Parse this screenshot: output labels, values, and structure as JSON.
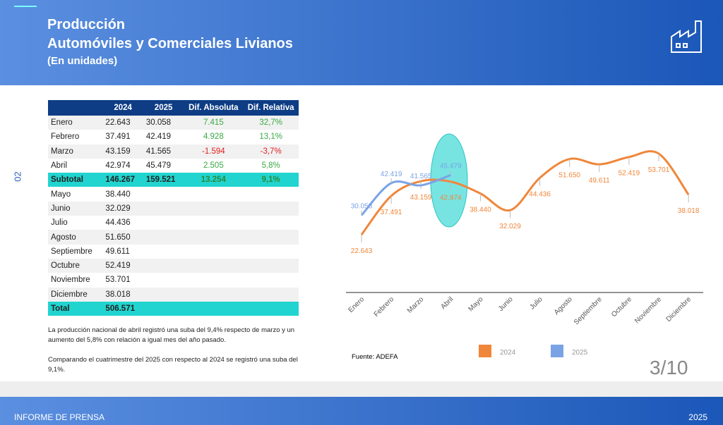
{
  "header": {
    "title": "Producción",
    "subtitle": "Automóviles y Comerciales Livianos",
    "unit": "(En unidades)"
  },
  "side_label": "02",
  "table": {
    "columns": [
      "2024",
      "2025",
      "Dif. Absoluta",
      "Dif. Relativa"
    ],
    "rows": [
      {
        "cells": [
          "Enero",
          "22.643",
          "30.058",
          "7.415",
          "32,7%"
        ]
      },
      {
        "cells": [
          "Febrero",
          "37.491",
          "42.419",
          "4.928",
          "13,1%"
        ]
      },
      {
        "cells": [
          "Marzo",
          "43.159",
          "41.565",
          "-1.594",
          "-3,7%"
        ]
      },
      {
        "cells": [
          "Abril",
          "42.974",
          "45.479",
          "2.505",
          "5,8%"
        ]
      },
      {
        "cells": [
          "Subtotal",
          "146.267",
          "159.521",
          "13.254",
          "9,1%"
        ],
        "highlight": true
      },
      {
        "cells": [
          "Mayo",
          "38.440"
        ]
      },
      {
        "cells": [
          "Junio",
          "32.029"
        ]
      },
      {
        "cells": [
          "Julio",
          "44.436"
        ]
      },
      {
        "cells": [
          "Agosto",
          "51.650"
        ]
      },
      {
        "cells": [
          "Septiembre",
          "49.611"
        ]
      },
      {
        "cells": [
          "Octubre",
          "52.419"
        ]
      },
      {
        "cells": [
          "Noviembre",
          "53.701"
        ]
      },
      {
        "cells": [
          "Diciembre",
          "38.018"
        ]
      },
      {
        "cells": [
          "Total",
          "506.571"
        ],
        "highlight": true
      }
    ]
  },
  "notes": [
    "La producción nacional de abril registró una suba del 9,4% respecto de marzo y un aumento del 5,8% con relación a igual mes del año pasado.",
    "Comparando el cuatrimestre del 2025 con respecto al 2024 se registró una suba del 9,1%."
  ],
  "chart_data": {
    "type": "line",
    "categories": [
      "Enero",
      "Febrero",
      "Marzo",
      "Abril",
      "Mayo",
      "Junio",
      "Julio",
      "Agosto",
      "Septiembre",
      "Octubre",
      "Noviembre",
      "Diciembre"
    ],
    "series": [
      {
        "name": "2024",
        "color": "#f0863a",
        "values": [
          22643,
          37491,
          43159,
          42974,
          38440,
          32029,
          44436,
          51650,
          49611,
          52419,
          53701,
          38018
        ],
        "value_labels": [
          "22.643",
          "37.491",
          "43.159",
          "42.974",
          "38.440",
          "32.029",
          "44.436",
          "51.650",
          "49.611",
          "52.419",
          "53.701",
          "38.018"
        ]
      },
      {
        "name": "2025",
        "color": "#7aa3e6",
        "values": [
          30058,
          42419,
          41565,
          45479,
          null,
          null,
          null,
          null,
          null,
          null,
          null,
          null
        ],
        "value_labels": [
          "30.058",
          "42.419",
          "41.565",
          "45.479",
          null,
          null,
          null,
          null,
          null,
          null,
          null,
          null
        ]
      }
    ]
  },
  "source": "Fuente: ADEFA",
  "page_number": "3/10",
  "footer": {
    "left": "INFORME DE PRENSA",
    "right": "2025"
  }
}
